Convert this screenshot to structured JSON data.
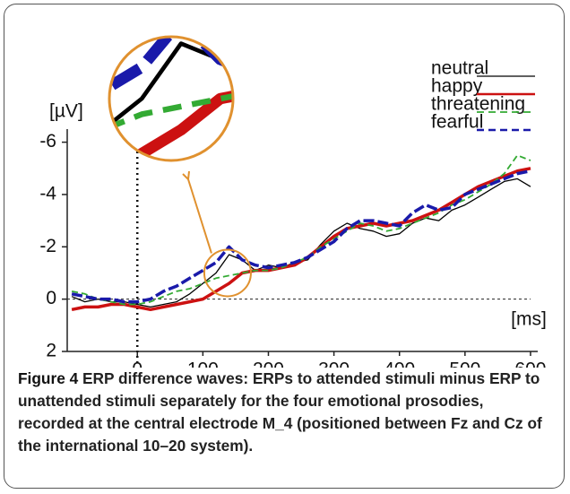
{
  "chart_data": {
    "type": "line",
    "x_label": "[ms]",
    "y_label": "[µV]",
    "x": [
      -100,
      -80,
      -60,
      -40,
      -20,
      0,
      20,
      40,
      60,
      80,
      100,
      120,
      140,
      160,
      180,
      200,
      220,
      240,
      260,
      280,
      300,
      320,
      340,
      360,
      380,
      400,
      420,
      440,
      460,
      480,
      500,
      520,
      540,
      560,
      580,
      600
    ],
    "series": [
      {
        "name": "neutral",
        "color": "#000000",
        "width": 1.3,
        "dashed": false,
        "values": [
          -0.1,
          0.1,
          0.0,
          0.1,
          0.1,
          0.2,
          0.3,
          0.2,
          0.1,
          -0.2,
          -0.6,
          -1.0,
          -1.7,
          -1.5,
          -1.1,
          -1.3,
          -1.2,
          -1.4,
          -1.5,
          -2.1,
          -2.6,
          -2.9,
          -2.7,
          -2.6,
          -2.4,
          -2.5,
          -2.9,
          -3.1,
          -3.0,
          -3.4,
          -3.6,
          -3.9,
          -4.2,
          -4.5,
          -4.6,
          -4.3
        ]
      },
      {
        "name": "happy",
        "color": "#cc1111",
        "width": 3.5,
        "dashed": false,
        "values": [
          0.4,
          0.3,
          0.3,
          0.2,
          0.2,
          0.3,
          0.4,
          0.3,
          0.2,
          0.1,
          0.0,
          -0.3,
          -0.6,
          -1.0,
          -1.1,
          -1.1,
          -1.2,
          -1.3,
          -1.6,
          -2.0,
          -2.4,
          -2.7,
          -2.8,
          -2.9,
          -2.8,
          -2.9,
          -3.0,
          -3.2,
          -3.4,
          -3.7,
          -4.0,
          -4.3,
          -4.5,
          -4.7,
          -4.9,
          -5.0
        ]
      },
      {
        "name": "threatening",
        "color": "#33aa33",
        "width": 1.8,
        "dashed": true,
        "values": [
          -0.3,
          -0.2,
          0.0,
          0.1,
          0.2,
          0.2,
          0.1,
          -0.1,
          -0.3,
          -0.4,
          -0.6,
          -0.8,
          -0.9,
          -1.0,
          -1.1,
          -1.1,
          -1.2,
          -1.4,
          -1.6,
          -2.0,
          -2.3,
          -2.6,
          -2.9,
          -2.8,
          -2.6,
          -2.7,
          -2.9,
          -3.1,
          -3.3,
          -3.6,
          -3.8,
          -4.1,
          -4.4,
          -4.8,
          -5.5,
          -5.3
        ]
      },
      {
        "name": "fearful",
        "color": "#1a1aaa",
        "width": 3.5,
        "dashed": true,
        "values": [
          -0.2,
          -0.1,
          0.0,
          0.0,
          0.1,
          0.1,
          0.0,
          -0.3,
          -0.5,
          -0.8,
          -1.1,
          -1.4,
          -2.0,
          -1.5,
          -1.3,
          -1.2,
          -1.3,
          -1.4,
          -1.6,
          -1.9,
          -2.2,
          -2.7,
          -3.0,
          -3.0,
          -2.9,
          -2.8,
          -3.3,
          -3.6,
          -3.4,
          -3.5,
          -4.0,
          -4.2,
          -4.4,
          -4.6,
          -4.8,
          -4.9
        ]
      }
    ],
    "xlim": [
      -107,
      611
    ],
    "xticks": [
      0,
      100,
      200,
      300,
      400,
      500,
      600
    ],
    "ylim": [
      2,
      -6.5
    ],
    "yticks": [
      -6,
      -4,
      -2,
      0,
      2
    ],
    "legend": "upper right"
  },
  "caption": {
    "label": "Figure 4",
    "text": "ERP difference waves: ERPs to attended stimuli minus ERP to unattended stimuli separately for the four emotional prosodies, recorded at the central electrode M_4 (positioned between Fz and Cz of the international 10–20 system)."
  }
}
